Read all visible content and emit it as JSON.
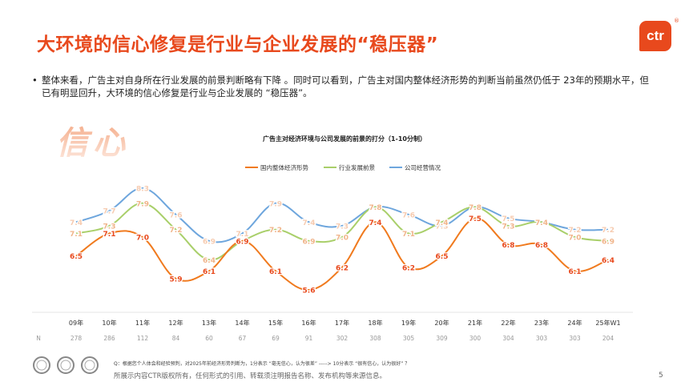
{
  "title": "大环境的信心修复是行业与企业发展的“稳压器”",
  "logo": {
    "text": "ctr",
    "mark": "®"
  },
  "bullet": "整体来看，广告主对自身所在行业发展的前景判断略有下降 。同时可以看到，广告主对国内整体经济形势的判断当前虽然仍低于 23年的预期水平，但已有明显回升，大环境的信心修复是行业与企业发展的 “稳压器”。",
  "decor_text": "信心",
  "footnote": "Q：根据您个人体会和经验预判，对2025年前经济形势判断为，1分表示 “毫无信心，认为很差” -----> 10分表示 “很有信心，认为很好” ？",
  "copyright": "所展示内容CTR版权所有，任何形式的引用、转载须注明报告名称、发布机构等来源信息。",
  "page_number": "5",
  "colors": {
    "brand": "#e8491d",
    "economy": "#f07a1e",
    "industry": "#a9cf6a",
    "company": "#6ea6dd"
  },
  "chart_data": {
    "type": "line",
    "title": "广告主对经济环境与公司发展的前景的打分（1-10分制）",
    "categories": [
      "09年",
      "10年",
      "11年",
      "12年",
      "13年",
      "14年",
      "15年",
      "16年",
      "17年",
      "18年",
      "19年",
      "20年",
      "21年",
      "22年",
      "23年",
      "24年",
      "25年W1"
    ],
    "n_label": "N",
    "n_values": [
      "278",
      "286",
      "112",
      "84",
      "60",
      "67",
      "69",
      "91",
      "302",
      "308",
      "305",
      "309",
      "300",
      "304",
      "303",
      "303",
      "204"
    ],
    "ylim": [
      5,
      8.6
    ],
    "series": [
      {
        "name": "国内整体经济形势",
        "color": "#f07a1e",
        "values": [
          6.5,
          7.1,
          7.0,
          5.9,
          6.1,
          6.9,
          6.1,
          5.6,
          6.2,
          7.4,
          6.2,
          6.5,
          7.5,
          6.8,
          6.8,
          6.1,
          6.4
        ]
      },
      {
        "name": "行业发展前景",
        "color": "#a9cf6a",
        "values": [
          7.1,
          7.3,
          7.9,
          7.2,
          6.4,
          6.9,
          7.2,
          6.9,
          7.0,
          7.8,
          7.1,
          7.4,
          7.8,
          7.3,
          7.4,
          7.0,
          6.9
        ]
      },
      {
        "name": "公司经营情况",
        "color": "#6ea6dd",
        "values": [
          7.4,
          7.7,
          8.3,
          7.6,
          6.9,
          7.1,
          7.9,
          7.4,
          7.3,
          7.8,
          7.6,
          7.3,
          7.8,
          7.5,
          7.4,
          7.2,
          7.2
        ]
      }
    ]
  }
}
